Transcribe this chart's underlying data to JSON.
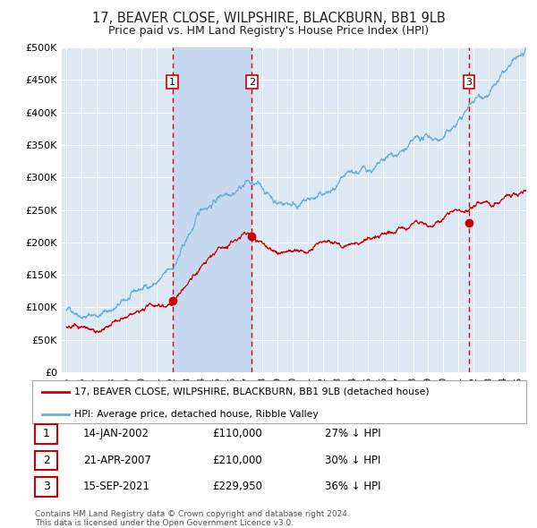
{
  "title": "17, BEAVER CLOSE, WILPSHIRE, BLACKBURN, BB1 9LB",
  "subtitle": "Price paid vs. HM Land Registry's House Price Index (HPI)",
  "title_fontsize": 10.5,
  "subtitle_fontsize": 9,
  "background_color": "#ffffff",
  "plot_bg_color": "#dce9f5",
  "grid_color": "#ffffff",
  "hpi_color": "#6baed6",
  "price_color": "#cc0000",
  "sale_marker_color": "#cc0000",
  "vline_color": "#cc0000",
  "vspan_color": "#c6d9f0",
  "ylim": [
    0,
    500000
  ],
  "yticks": [
    0,
    50000,
    100000,
    150000,
    200000,
    250000,
    300000,
    350000,
    400000,
    450000,
    500000
  ],
  "ytick_labels": [
    "£0",
    "£50K",
    "£100K",
    "£150K",
    "£200K",
    "£250K",
    "£300K",
    "£350K",
    "£400K",
    "£450K",
    "£500K"
  ],
  "xlim_start": 1994.7,
  "xlim_end": 2025.5,
  "xtick_years": [
    1995,
    1996,
    1997,
    1998,
    1999,
    2000,
    2001,
    2002,
    2003,
    2004,
    2005,
    2006,
    2007,
    2008,
    2009,
    2010,
    2011,
    2012,
    2013,
    2014,
    2015,
    2016,
    2017,
    2018,
    2019,
    2020,
    2021,
    2022,
    2023,
    2024,
    2025
  ],
  "sales": [
    {
      "label": "1",
      "date_num": 2002.04,
      "price": 110000
    },
    {
      "label": "2",
      "date_num": 2007.3,
      "price": 210000
    },
    {
      "label": "3",
      "date_num": 2021.71,
      "price": 229950
    }
  ],
  "legend_line1": "17, BEAVER CLOSE, WILPSHIRE, BLACKBURN, BB1 9LB (detached house)",
  "legend_line2": "HPI: Average price, detached house, Ribble Valley",
  "table": [
    {
      "num": "1",
      "date": "14-JAN-2002",
      "price": "£110,000",
      "hpi": "27% ↓ HPI"
    },
    {
      "num": "2",
      "date": "21-APR-2007",
      "price": "£210,000",
      "hpi": "30% ↓ HPI"
    },
    {
      "num": "3",
      "date": "15-SEP-2021",
      "price": "£229,950",
      "hpi": "36% ↓ HPI"
    }
  ],
  "footnote1": "Contains HM Land Registry data © Crown copyright and database right 2024.",
  "footnote2": "This data is licensed under the Open Government Licence v3.0."
}
